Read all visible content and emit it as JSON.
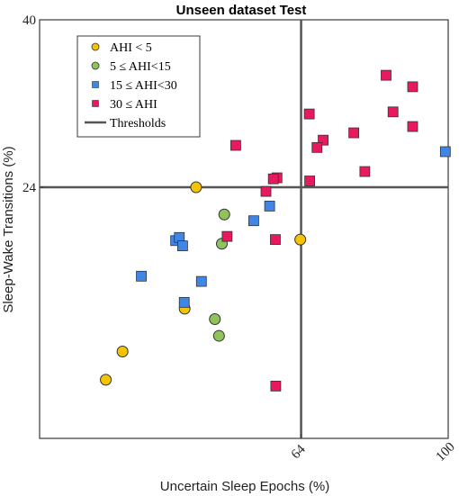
{
  "chart_data": {
    "type": "scatter",
    "title": "Unseen dataset Test",
    "xlabel": "Uncertain Sleep Epochs (%)",
    "ylabel": "Sleep-Wake Transitions (%)",
    "xlim": [
      0,
      100
    ],
    "ylim": [
      0,
      40
    ],
    "x_ticks": [
      "64",
      "100"
    ],
    "y_ticks": [
      "24",
      "40"
    ],
    "x_tick_values": [
      64,
      100
    ],
    "y_tick_values": [
      24,
      40
    ],
    "grid": false,
    "legend_position": "top-left",
    "thresholds": {
      "label": "Thresholds",
      "x": 64,
      "y": 24,
      "color": "#555555"
    },
    "series": [
      {
        "name": "AHI < 5",
        "marker": "circle",
        "color": "#f5c400",
        "points": [
          {
            "x": 38.3,
            "y": 24.0
          },
          {
            "x": 63.8,
            "y": 19.0
          },
          {
            "x": 35.5,
            "y": 12.4
          },
          {
            "x": 20.3,
            "y": 8.3
          },
          {
            "x": 16.2,
            "y": 5.6
          }
        ]
      },
      {
        "name": "5 ≤ AHI<15",
        "marker": "circle",
        "color": "#8fc45a",
        "points": [
          {
            "x": 45.2,
            "y": 21.4
          },
          {
            "x": 44.6,
            "y": 18.6
          },
          {
            "x": 42.9,
            "y": 11.4
          },
          {
            "x": 43.9,
            "y": 9.8
          }
        ]
      },
      {
        "name": "15 ≤ AHI<30",
        "marker": "square",
        "color": "#3f86e6",
        "points": [
          {
            "x": 99.3,
            "y": 27.4
          },
          {
            "x": 56.3,
            "y": 22.2
          },
          {
            "x": 52.4,
            "y": 20.8
          },
          {
            "x": 33.3,
            "y": 18.9
          },
          {
            "x": 34.2,
            "y": 19.2
          },
          {
            "x": 35.0,
            "y": 18.4
          },
          {
            "x": 24.9,
            "y": 15.5
          },
          {
            "x": 39.6,
            "y": 15.0
          },
          {
            "x": 35.4,
            "y": 13.0
          }
        ]
      },
      {
        "name": "30 ≤ AHI",
        "marker": "square",
        "color": "#e8195c",
        "points": [
          {
            "x": 84.8,
            "y": 34.7
          },
          {
            "x": 91.3,
            "y": 33.6
          },
          {
            "x": 86.5,
            "y": 31.2
          },
          {
            "x": 91.3,
            "y": 29.8
          },
          {
            "x": 66.0,
            "y": 31.0
          },
          {
            "x": 76.9,
            "y": 29.2
          },
          {
            "x": 69.4,
            "y": 28.5
          },
          {
            "x": 67.9,
            "y": 27.8
          },
          {
            "x": 48.0,
            "y": 28.0
          },
          {
            "x": 79.6,
            "y": 25.5
          },
          {
            "x": 58.1,
            "y": 24.9
          },
          {
            "x": 57.2,
            "y": 24.8
          },
          {
            "x": 66.1,
            "y": 24.6
          },
          {
            "x": 55.4,
            "y": 23.6
          },
          {
            "x": 45.9,
            "y": 19.3
          },
          {
            "x": 57.7,
            "y": 19.0
          },
          {
            "x": 57.8,
            "y": 5.0
          }
        ]
      }
    ]
  }
}
